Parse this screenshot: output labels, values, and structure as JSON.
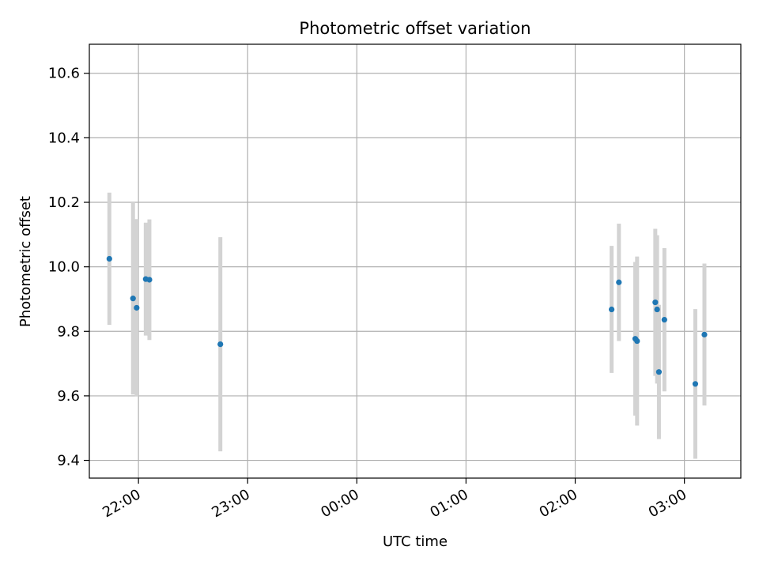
{
  "chart_data": {
    "type": "scatter",
    "title": "Photometric offset variation",
    "xlabel": "UTC time",
    "ylabel": "Photometric offset",
    "x_is_time": true,
    "xlim": [
      "21:33",
      "03:31"
    ],
    "ylim": [
      9.345,
      10.69
    ],
    "x_ticks": [
      "22:00",
      "23:00",
      "00:00",
      "01:00",
      "02:00",
      "03:00"
    ],
    "y_ticks": [
      "9.4",
      "9.6",
      "9.8",
      "10.0",
      "10.2",
      "10.4",
      "10.6"
    ],
    "grid": true,
    "marker_color": "#1f77b4",
    "errorbar_color": "#d3d3d3",
    "points": [
      {
        "time": "21:44",
        "y": 10.025,
        "err": 0.205
      },
      {
        "time": "21:57",
        "y": 9.902,
        "err": 0.298
      },
      {
        "time": "21:59",
        "y": 9.873,
        "err": 0.275
      },
      {
        "time": "22:04",
        "y": 9.962,
        "err": 0.175
      },
      {
        "time": "22:06",
        "y": 9.96,
        "err": 0.187
      },
      {
        "time": "22:45",
        "y": 9.76,
        "err": 0.332
      },
      {
        "time": "02:20",
        "y": 9.868,
        "err": 0.197
      },
      {
        "time": "02:24",
        "y": 9.952,
        "err": 0.182
      },
      {
        "time": "02:33",
        "y": 9.777,
        "err": 0.238
      },
      {
        "time": "02:34",
        "y": 9.77,
        "err": 0.262
      },
      {
        "time": "02:44",
        "y": 9.89,
        "err": 0.228
      },
      {
        "time": "02:45",
        "y": 9.868,
        "err": 0.23
      },
      {
        "time": "02:46",
        "y": 9.674,
        "err": 0.208
      },
      {
        "time": "02:49",
        "y": 9.836,
        "err": 0.222
      },
      {
        "time": "03:06",
        "y": 9.637,
        "err": 0.232
      },
      {
        "time": "03:11",
        "y": 9.79,
        "err": 0.22
      }
    ]
  }
}
